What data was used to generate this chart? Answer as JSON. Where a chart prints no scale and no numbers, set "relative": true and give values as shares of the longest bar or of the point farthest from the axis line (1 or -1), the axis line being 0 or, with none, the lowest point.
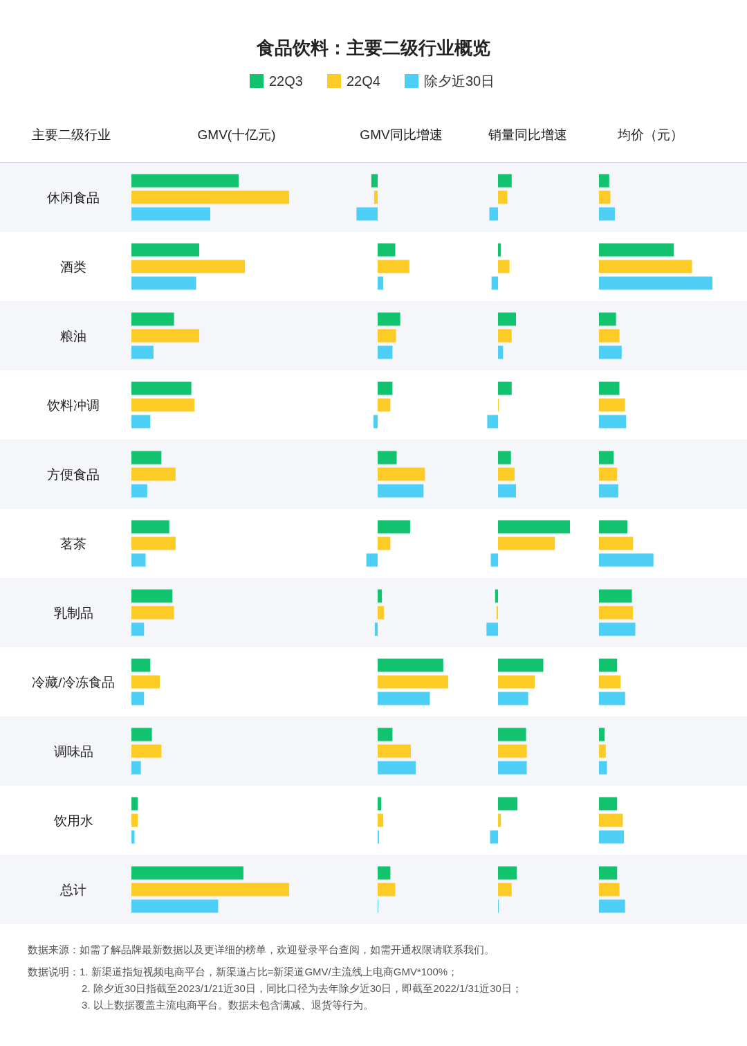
{
  "chart_data": [
    {
      "type": "bar",
      "orientation": "horizontal",
      "relative": true,
      "title": "食品饮料：主要二级行业概览",
      "ylabel": "主要二级行业",
      "subtitle": "GMV(十亿元)",
      "legend": "top",
      "categories": [
        "休闲食品",
        "酒类",
        "粮油",
        "饮料冲调",
        "方便食品",
        "茗茶",
        "乳制品",
        "冷藏/冷冻食品",
        "调味品",
        "饮用水",
        "总计"
      ],
      "series": [
        {
          "name": "22Q3",
          "color": "#13c26f",
          "values": [
            0.68,
            0.43,
            0.27,
            0.38,
            0.19,
            0.24,
            0.26,
            0.12,
            0.13,
            0.04,
            0.71
          ]
        },
        {
          "name": "22Q4",
          "color": "#fccb25",
          "values": [
            1,
            0.72,
            0.43,
            0.4,
            0.28,
            0.28,
            0.27,
            0.18,
            0.19,
            0.04,
            1
          ]
        },
        {
          "name": "除夕近30日",
          "color": "#4dcff5",
          "values": [
            0.5,
            0.41,
            0.14,
            0.12,
            0.1,
            0.09,
            0.08,
            0.08,
            0.06,
            0.02,
            0.55
          ]
        }
      ],
      "annotations": [
        "数据来源：如需了解品牌最新数据以及更详细的榜单，欢迎登录平台查阅，如需开通权限请联系我们。",
        "数据说明：1. 新渠道指短视频电商平台，新渠道占比=新渠道GMV/主流线上电商GMV*100%；",
        "2. 除夕近30日指截至2023/1/21近30日，同比口径为去年除夕近30日，即截至2022/1/31近30日；",
        "3. 以上数据覆盖主流电商平台。数据未包含满减、退货等行为。"
      ]
    },
    {
      "type": "bar",
      "orientation": "horizontal",
      "relative": true,
      "subtitle": "GMV同比增速",
      "categories": [
        null,
        null,
        null,
        null,
        null,
        null,
        null,
        null,
        null,
        null,
        null
      ],
      "series": [
        {
          "color": "#13c26f",
          "values": [
            -0.09,
            0.25,
            0.32,
            0.21,
            0.27,
            0.46,
            0.06,
            0.93,
            0.21,
            0.05,
            0.18
          ]
        },
        {
          "color": "#fccb25",
          "values": [
            -0.05,
            0.45,
            0.26,
            0.18,
            0.67,
            0.18,
            0.09,
            1,
            0.47,
            0.08,
            0.25
          ]
        },
        {
          "color": "#4dcff5",
          "values": [
            -0.3,
            0.08,
            0.21,
            -0.06,
            0.65,
            -0.16,
            -0.04,
            0.74,
            0.54,
            0.02,
            0
          ]
        }
      ]
    },
    {
      "type": "bar",
      "orientation": "horizontal",
      "relative": true,
      "subtitle": "销量同比增速",
      "categories": [
        null,
        null,
        null,
        null,
        null,
        null,
        null,
        null,
        null,
        null,
        null
      ],
      "series": [
        {
          "color": "#13c26f",
          "values": [
            0.19,
            0.04,
            0.25,
            0.19,
            0.18,
            1,
            -0.04,
            0.63,
            0.39,
            0.27,
            0.26
          ]
        },
        {
          "color": "#fccb25",
          "values": [
            0.13,
            0.16,
            0.19,
            0.01,
            0.23,
            0.79,
            -0.02,
            0.51,
            0.4,
            0.04,
            0.19
          ]
        },
        {
          "color": "#4dcff5",
          "values": [
            -0.12,
            -0.09,
            0.07,
            -0.15,
            0.25,
            -0.1,
            -0.16,
            0.42,
            0.4,
            -0.11,
            0
          ]
        }
      ]
    },
    {
      "type": "bar",
      "orientation": "horizontal",
      "relative": true,
      "subtitle": "均价（元）",
      "categories": [
        null,
        null,
        null,
        null,
        null,
        null,
        null,
        null,
        null,
        null,
        null
      ],
      "series": [
        {
          "color": "#13c26f",
          "values": [
            0.09,
            0.66,
            0.15,
            0.18,
            0.13,
            0.25,
            0.29,
            0.16,
            0.05,
            0.16,
            0.16
          ]
        },
        {
          "color": "#fccb25",
          "values": [
            0.1,
            0.82,
            0.18,
            0.23,
            0.16,
            0.3,
            0.3,
            0.19,
            0.06,
            0.21,
            0.18
          ]
        },
        {
          "color": "#4dcff5",
          "values": [
            0.14,
            1,
            0.2,
            0.24,
            0.17,
            0.48,
            0.32,
            0.23,
            0.07,
            0.22,
            0.23
          ]
        }
      ]
    }
  ]
}
